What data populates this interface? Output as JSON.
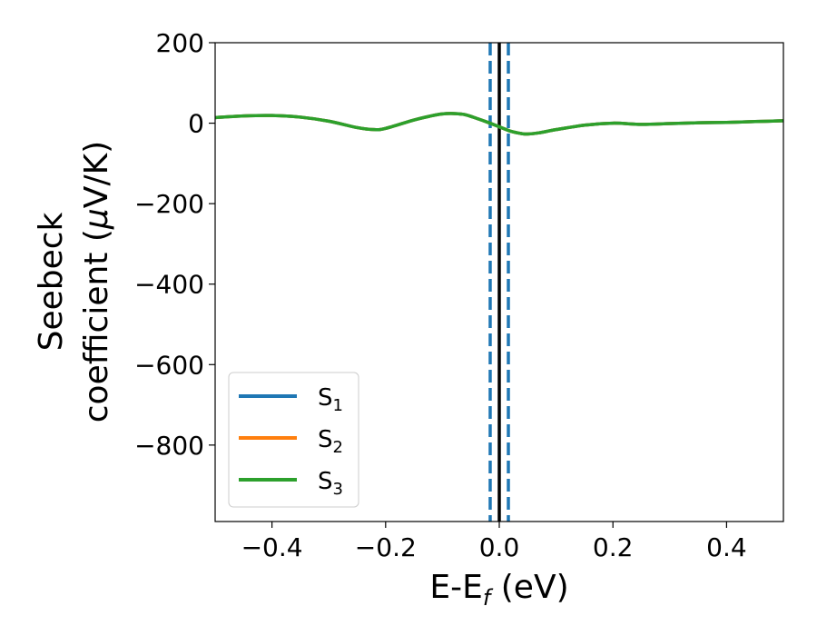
{
  "chart_data": {
    "type": "line",
    "xlabel": {
      "main": "E-E",
      "sub": "f",
      "suffix": " (eV)"
    },
    "ylabel": {
      "line1": "Seebeck",
      "line2_prefix": "coefficient  (",
      "mu": "μ",
      "line2_suffix": "V/K)"
    },
    "xlim": [
      -0.5,
      0.5
    ],
    "ylim": [
      -990,
      200
    ],
    "xticks": [
      -0.4,
      -0.2,
      0.0,
      0.2,
      0.4
    ],
    "xtick_labels": [
      "−0.4",
      "−0.2",
      "0.0",
      "0.2",
      "0.4"
    ],
    "yticks": [
      200,
      0,
      -200,
      -400,
      -600,
      -800
    ],
    "ytick_labels": [
      "200",
      "0",
      "−200",
      "−400",
      "−600",
      "−800"
    ],
    "grid": false,
    "legend_position": "lower-left",
    "series": [
      {
        "name": "S",
        "sub": "1",
        "color": "#1f77b4",
        "x": [
          -0.5,
          -0.45,
          -0.4,
          -0.35,
          -0.3,
          -0.25,
          -0.22,
          -0.2,
          -0.15,
          -0.12,
          -0.1,
          -0.08,
          -0.06,
          -0.04,
          -0.02,
          0.0,
          0.02,
          0.04,
          0.05,
          0.07,
          0.1,
          0.15,
          0.2,
          0.25,
          0.3,
          0.35,
          0.4,
          0.45,
          0.5
        ],
        "y": [
          14,
          18,
          19,
          15,
          5,
          -11,
          -16,
          -13,
          8,
          18,
          23,
          24,
          21,
          12,
          2,
          -9,
          -20,
          -26,
          -27,
          -24,
          -16,
          -5,
          0,
          -3,
          -1,
          1,
          2,
          4,
          6
        ]
      },
      {
        "name": "S",
        "sub": "2",
        "color": "#ff7f0e",
        "x": [
          -0.5,
          -0.45,
          -0.4,
          -0.35,
          -0.3,
          -0.25,
          -0.22,
          -0.2,
          -0.15,
          -0.12,
          -0.1,
          -0.08,
          -0.06,
          -0.04,
          -0.02,
          0.0,
          0.02,
          0.04,
          0.05,
          0.07,
          0.1,
          0.15,
          0.2,
          0.25,
          0.3,
          0.35,
          0.4,
          0.45,
          0.5
        ],
        "y": [
          14,
          18,
          19,
          15,
          5,
          -11,
          -16,
          -13,
          8,
          18,
          23,
          24,
          21,
          12,
          2,
          -9,
          -20,
          -26,
          -27,
          -24,
          -16,
          -5,
          0,
          -3,
          -1,
          1,
          2,
          4,
          6
        ]
      },
      {
        "name": "S",
        "sub": "3",
        "color": "#2ca02c",
        "x": [
          -0.5,
          -0.45,
          -0.4,
          -0.35,
          -0.3,
          -0.25,
          -0.22,
          -0.2,
          -0.15,
          -0.12,
          -0.1,
          -0.08,
          -0.06,
          -0.04,
          -0.02,
          0.0,
          0.02,
          0.04,
          0.05,
          0.07,
          0.1,
          0.15,
          0.2,
          0.25,
          0.3,
          0.35,
          0.4,
          0.45,
          0.5
        ],
        "y": [
          14,
          18,
          19,
          15,
          5,
          -11,
          -16,
          -13,
          8,
          18,
          23,
          24,
          21,
          12,
          2,
          -9,
          -20,
          -26,
          -27,
          -24,
          -16,
          -5,
          0,
          -3,
          -1,
          1,
          2,
          4,
          6
        ]
      }
    ],
    "vertical_lines": [
      {
        "x": 0.0,
        "color": "#000000",
        "style": "solid"
      },
      {
        "x": -0.016,
        "color": "#1f77b4",
        "style": "dashed"
      },
      {
        "x": 0.016,
        "color": "#1f77b4",
        "style": "dashed"
      }
    ]
  }
}
